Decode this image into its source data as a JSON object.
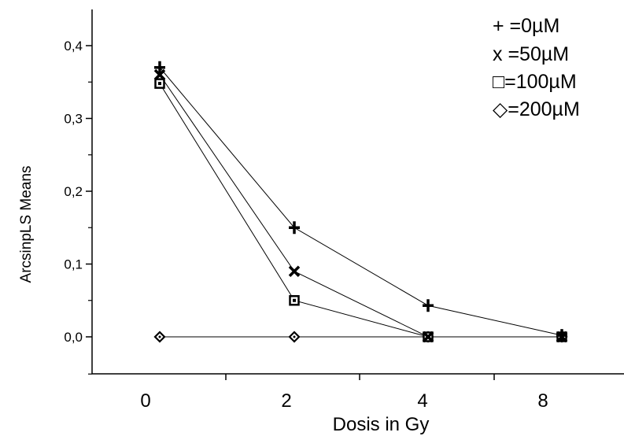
{
  "chart_data": {
    "type": "line",
    "categories": [
      "0",
      "2",
      "4",
      "8"
    ],
    "xlabel": "Dosis in Gy",
    "ylabel": "ArcsinpLS Means",
    "ylim": [
      -0.05,
      0.45
    ],
    "yticks": [
      "0,0",
      "0,1",
      "0,2",
      "0,3",
      "0,4"
    ],
    "ytick_values": [
      0,
      0.1,
      0.2,
      0.3,
      0.4
    ],
    "grid": false,
    "legend_position": "top-right",
    "series": [
      {
        "name": "+ =0µM",
        "marker": "plus",
        "values": [
          0.37,
          0.15,
          0.043,
          0.002
        ]
      },
      {
        "name": "x =50µM",
        "marker": "x",
        "values": [
          0.36,
          0.09,
          0.0,
          0.0
        ]
      },
      {
        "name": "□=100µM",
        "marker": "square",
        "values": [
          0.348,
          0.05,
          0.0,
          0.0
        ]
      },
      {
        "name": "◇=200µM",
        "marker": "diamond",
        "values": [
          0.0,
          0.0,
          0.0,
          0.0
        ]
      }
    ]
  }
}
